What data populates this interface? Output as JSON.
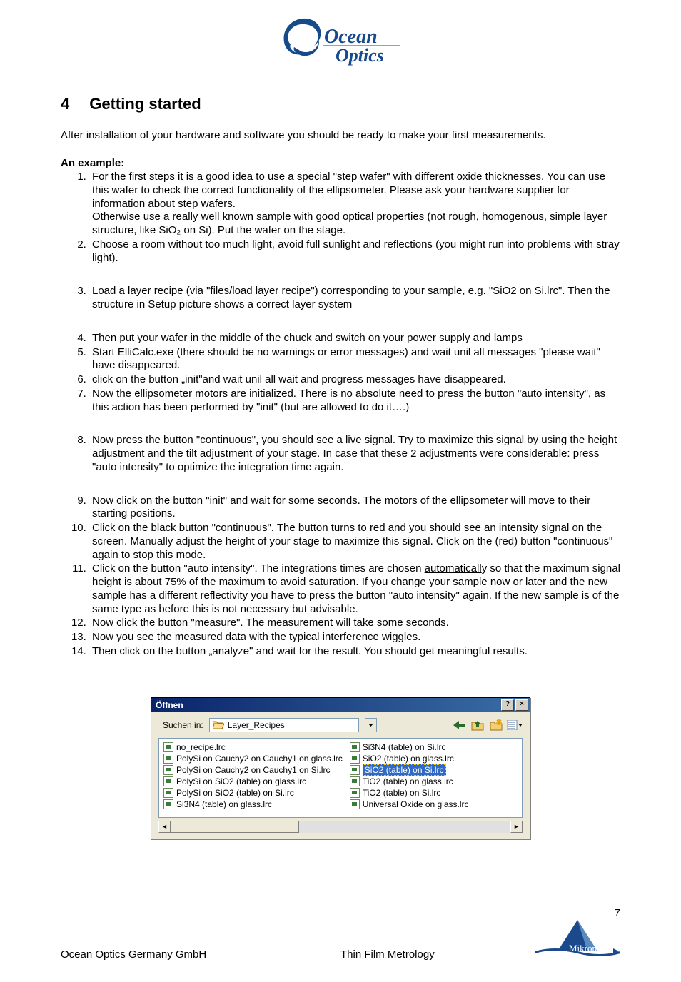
{
  "logo": {
    "brand_top": "Ocean",
    "brand_bottom": "Optics",
    "swirl_color": "#164a8a",
    "text_color": "#164a8a"
  },
  "section": {
    "number": "4",
    "title": "Getting started"
  },
  "intro": "After installation of your hardware and software you should be ready to make your first measurements.",
  "example_label": "An example:",
  "steps": [
    "For the first steps it is a good idea to use a special \"§step wafer§\" with different oxide thicknesses. You can use this wafer to check the correct functionality of the ellipsometer. Please ask your hardware supplier for information about step wafers.\nOtherwise use a really well known sample with good optical properties (not rough, homogenous, simple layer structure, like SiO₂ on Si). Put the wafer on the stage.",
    "Choose a room without too much light, avoid full sunlight and reflections (you might run into problems with stray light).",
    "Load a layer recipe (via \"files/load layer recipe\") corresponding to your sample, e.g. \"SiO2 on Si.lrc\". Then the structure in Setup picture shows a correct layer system",
    "Then put your wafer in the middle of the chuck and switch on your power supply and lamps",
    "Start ElliCalc.exe (there should be no warnings or error messages) and wait unil all messages \"please wait\" have disappeared.",
    "click on the button „init\"and wait unil all wait and progress messages have disappeared.",
    "Now the ellipsometer motors are initialized. There is no absolute need to press the button \"auto intensity\", as this action has been performed by \"init\" (but are allowed to do it….)",
    "Now press the button \"continuous\", you should see a live signal. Try to maximize this signal by using the height adjustment and the tilt adjustment of your stage. In case that these 2 adjustments were considerable: press \"auto intensity\" to optimize the integration time again.",
    " Now click on the button \"init\" and wait for some seconds. The motors of the ellipsometer will move to their starting positions.",
    "Click on the black button \"continuous\". The button turns to red and you should see an intensity  signal on the screen. Manually adjust the height of your stage to maximize this signal. Click on the (red) button \"continuous\" again to stop this mode.",
    "Click on the button \"auto intensity\". The integrations times are chosen §automaticall§y so that the maximum signal height is about 75% of the maximum to avoid saturation. If you change your sample now or later and the new sample has a different reflectivity you have to press the button \"auto intensity\" again. If the new sample is of the same type as before this is not necessary but advisable.",
    "Now click the button \"measure\". The measurement will take some seconds.",
    "Now you see the measured data with the typical interference wiggles.",
    "Then click on the button „analyze\" and wait for the result. You should get meaningful results."
  ],
  "gap_after": [
    3,
    8
  ],
  "dialog": {
    "title": "Öffnen",
    "lookin_label": "Suchen in:",
    "folder": "Layer_Recipes",
    "files_col1": [
      "no_recipe.lrc",
      "PolySi on Cauchy2 on Cauchy1 on glass.lrc",
      "PolySi on Cauchy2 on Cauchy1 on Si.lrc",
      "PolySi on SiO2 (table) on glass.lrc",
      "PolySi on SiO2 (table) on Si.lrc",
      "Si3N4 (table) on glass.lrc"
    ],
    "files_col2": [
      "Si3N4 (table) on Si.lrc",
      "SiO2 (table) on glass.lrc",
      "SiO2 (table) on Si.lrc",
      "TiO2 (table) on glass.lrc",
      "TiO2 (table) on Si.lrc",
      "Universal Oxide on glass.lrc"
    ],
    "selected_index_col2": 2,
    "titlebar_bg_from": "#0a246a",
    "titlebar_bg_to": "#3a6ea5",
    "dialog_bg": "#ece9d8",
    "list_bg": "#ffffff",
    "selection_bg": "#316ac5"
  },
  "footer": {
    "page_number": "7",
    "left": "Ocean Optics Germany GmbH",
    "right": "Thin Film Metrology",
    "logo_text": "Mikropack",
    "logo_tri_color": "#1a4a8c"
  }
}
